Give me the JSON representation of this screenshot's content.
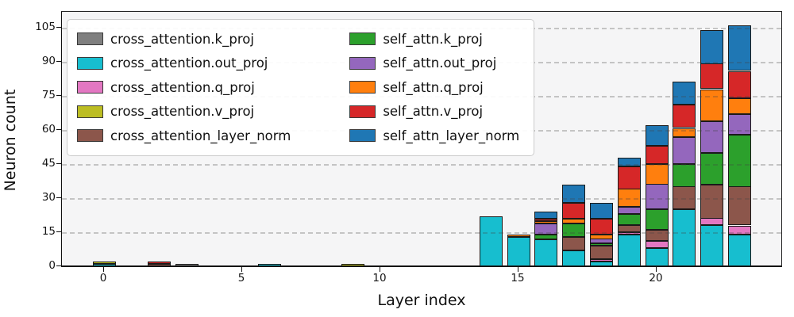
{
  "chart_data": {
    "type": "bar",
    "stacked": true,
    "title": "",
    "xlabel": "Layer index",
    "ylabel": "Neuron count",
    "categories": [
      0,
      1,
      2,
      3,
      4,
      5,
      6,
      7,
      8,
      9,
      10,
      11,
      12,
      13,
      14,
      15,
      16,
      17,
      18,
      19,
      20,
      21,
      22,
      23
    ],
    "xticks": [
      "0",
      "5",
      "10",
      "15",
      "20"
    ],
    "xtick_values": [
      0,
      5,
      10,
      15,
      20
    ],
    "yticks": [
      "0",
      "15",
      "30",
      "45",
      "60",
      "75",
      "90",
      "105"
    ],
    "ytick_values": [
      0,
      15,
      30,
      45,
      60,
      75,
      90,
      105
    ],
    "ylim": [
      0,
      112.5
    ],
    "grid": "horizontal dashed, drawn over bars",
    "legend_position": "upper left, 2 columns",
    "bar_edge_color": "#1a1a1a",
    "plot_background": "#f5f5f6",
    "series": [
      {
        "name": "cross_attention.k_proj",
        "color": "#7f7f7f",
        "values": [
          0,
          0,
          0,
          1,
          0,
          0,
          0,
          0,
          0,
          0,
          0,
          0,
          0,
          0,
          0,
          0,
          0,
          0,
          0,
          0,
          0,
          0,
          0,
          0
        ]
      },
      {
        "name": "cross_attention.out_proj",
        "color": "#17becf",
        "values": [
          1,
          0,
          0,
          0,
          0,
          0,
          1,
          0,
          0,
          0,
          0,
          0,
          0,
          0,
          22,
          13,
          12,
          7,
          2,
          14,
          8,
          25,
          18,
          14
        ]
      },
      {
        "name": "cross_attention.q_proj",
        "color": "#e377c2",
        "values": [
          0,
          0,
          0,
          0,
          0,
          0,
          0,
          0,
          0,
          0,
          0,
          0,
          0,
          0,
          0,
          0,
          0,
          0,
          1,
          1,
          3,
          0,
          3,
          4
        ]
      },
      {
        "name": "cross_attention.v_proj",
        "color": "#bcbd22",
        "values": [
          1,
          0,
          0,
          0,
          0,
          0,
          0,
          0,
          0,
          1,
          0,
          0,
          0,
          0,
          0,
          0,
          0,
          0,
          0,
          0,
          0,
          0,
          0,
          0
        ]
      },
      {
        "name": "cross_attention_layer_norm",
        "color": "#8c564b",
        "values": [
          0,
          0,
          1,
          0,
          0,
          0,
          0,
          0,
          0,
          0,
          0,
          0,
          0,
          0,
          0,
          0,
          0,
          6,
          6,
          3,
          5,
          10,
          15,
          17
        ]
      },
      {
        "name": "self_attn.k_proj",
        "color": "#2ca02c",
        "values": [
          0,
          0,
          0,
          0,
          0,
          0,
          0,
          0,
          0,
          0,
          0,
          0,
          0,
          0,
          0,
          0,
          2,
          6,
          1,
          5,
          9,
          10,
          14,
          23
        ]
      },
      {
        "name": "self_attn.out_proj",
        "color": "#9467bd",
        "values": [
          0,
          0,
          0,
          0,
          0,
          0,
          0,
          0,
          0,
          0,
          0,
          0,
          0,
          0,
          0,
          0,
          5,
          0,
          2,
          3,
          11,
          12,
          14,
          9
        ]
      },
      {
        "name": "self_attn.q_proj",
        "color": "#ff7f0e",
        "values": [
          0,
          0,
          0,
          0,
          0,
          0,
          0,
          0,
          0,
          0,
          0,
          0,
          0,
          0,
          0,
          1,
          1,
          2,
          2,
          8,
          9,
          4,
          14,
          7
        ]
      },
      {
        "name": "self_attn.v_proj",
        "color": "#d62728",
        "values": [
          0,
          0,
          1,
          0,
          0,
          0,
          0,
          0,
          0,
          0,
          0,
          0,
          0,
          0,
          0,
          0,
          1,
          7,
          7,
          10,
          8,
          10,
          11,
          12
        ]
      },
      {
        "name": "self_attn_layer_norm",
        "color": "#1f77b4",
        "values": [
          0,
          0,
          0,
          0,
          0,
          0,
          0,
          0,
          0,
          0,
          0,
          0,
          0,
          0,
          0,
          0,
          3,
          8,
          7,
          4,
          9,
          10,
          15,
          20
        ]
      }
    ],
    "legend_order": [
      "cross_attention.k_proj",
      "cross_attention.out_proj",
      "cross_attention.q_proj",
      "cross_attention.v_proj",
      "cross_attention_layer_norm",
      "self_attn.k_proj",
      "self_attn.out_proj",
      "self_attn.q_proj",
      "self_attn.v_proj",
      "self_attn_layer_norm"
    ]
  }
}
